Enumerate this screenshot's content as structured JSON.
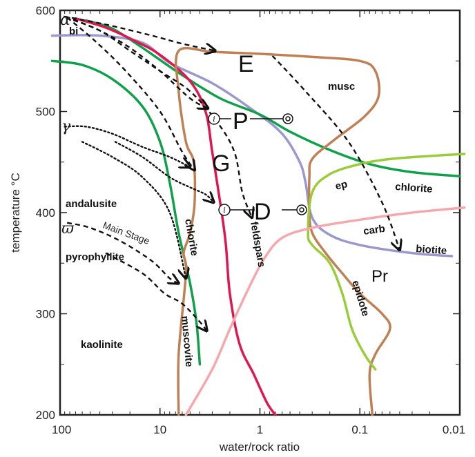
{
  "chart_data": {
    "type": "line",
    "x_scale": "log",
    "x_reversed": true,
    "xlim": [
      100,
      0.01
    ],
    "ylim": [
      200,
      600
    ],
    "xlabel": "water/rock ratio",
    "ylabel": "temperature °C",
    "x_ticks": [
      {
        "value": 100,
        "label": "100"
      },
      {
        "value": 10,
        "label": "10"
      },
      {
        "value": 1,
        "label": "1"
      },
      {
        "value": 0.1,
        "label": "0.1"
      },
      {
        "value": 0.01,
        "label": "0.01"
      }
    ],
    "y_ticks": [
      {
        "value": 200,
        "label": "200"
      },
      {
        "value": 300,
        "label": "300"
      },
      {
        "value": 400,
        "label": "400"
      },
      {
        "value": 500,
        "label": "500"
      },
      {
        "value": 600,
        "label": "600"
      }
    ],
    "series": [
      {
        "key": "biotite",
        "color": "#9a98cc",
        "points": [
          [
            120,
            575
          ],
          [
            40,
            575
          ],
          [
            15,
            568
          ],
          [
            8,
            548
          ],
          [
            3,
            528
          ],
          [
            1.2,
            502
          ],
          [
            0.6,
            478
          ],
          [
            0.4,
            450
          ],
          [
            0.35,
            430
          ],
          [
            0.3,
            395
          ],
          [
            0.2,
            378
          ],
          [
            0.1,
            368
          ],
          [
            0.03,
            360
          ],
          [
            0.012,
            357
          ]
        ]
      },
      {
        "key": "chlorite-high",
        "color": "#10a04c",
        "points": [
          [
            55,
            590
          ],
          [
            30,
            582
          ],
          [
            15,
            563
          ],
          [
            6,
            536
          ],
          [
            2.5,
            513
          ],
          [
            1,
            497
          ],
          [
            0.5,
            480
          ],
          [
            0.2,
            462
          ],
          [
            0.08,
            448
          ],
          [
            0.03,
            440
          ],
          [
            0.01,
            436
          ]
        ]
      },
      {
        "key": "chlorite-low",
        "color": "#10a04c",
        "points": [
          [
            120,
            550
          ],
          [
            60,
            546
          ],
          [
            30,
            532
          ],
          [
            15,
            505
          ],
          [
            10,
            470
          ],
          [
            8,
            430
          ],
          [
            6.5,
            380
          ],
          [
            5,
            330
          ],
          [
            4.3,
            290
          ],
          [
            4,
            250
          ]
        ]
      },
      {
        "key": "feldspars",
        "color": "#e01650",
        "points": [
          [
            70,
            592
          ],
          [
            35,
            583
          ],
          [
            18,
            570
          ],
          [
            10,
            556
          ],
          [
            5,
            530
          ],
          [
            3.5,
            500
          ],
          [
            3,
            460
          ],
          [
            2.5,
            410
          ],
          [
            2.2,
            370
          ],
          [
            2,
            320
          ],
          [
            1.6,
            270
          ],
          [
            1.15,
            240
          ],
          [
            0.85,
            212
          ],
          [
            0.7,
            200
          ]
        ]
      },
      {
        "key": "muscovite",
        "color": "#c08055",
        "points": [
          [
            6.5,
            200
          ],
          [
            6.5,
            260
          ],
          [
            5.5,
            340
          ],
          [
            5.8,
            360
          ],
          [
            5,
            380
          ],
          [
            4.5,
            410
          ],
          [
            4.6,
            450
          ],
          [
            5.5,
            470
          ],
          [
            6.5,
            520
          ],
          [
            6.5,
            560
          ],
          [
            3,
            559
          ],
          [
            1,
            557
          ],
          [
            0.3,
            554
          ],
          [
            0.1,
            550
          ],
          [
            0.07,
            540
          ],
          [
            0.065,
            515
          ],
          [
            0.09,
            495
          ],
          [
            0.18,
            472
          ],
          [
            0.3,
            453
          ],
          [
            0.32,
            435
          ],
          [
            0.32,
            400
          ],
          [
            0.3,
            380
          ],
          [
            0.22,
            360
          ],
          [
            0.15,
            340
          ],
          [
            0.1,
            320
          ],
          [
            0.06,
            300
          ],
          [
            0.05,
            285
          ],
          [
            0.07,
            260
          ],
          [
            0.08,
            240
          ],
          [
            0.075,
            200
          ]
        ]
      },
      {
        "key": "epidote",
        "color": "#9acb3a",
        "points": [
          [
            0.07,
            245
          ],
          [
            0.09,
            260
          ],
          [
            0.12,
            285
          ],
          [
            0.15,
            320
          ],
          [
            0.2,
            350
          ],
          [
            0.3,
            368
          ],
          [
            0.33,
            380
          ],
          [
            0.3,
            420
          ],
          [
            0.2,
            438
          ],
          [
            0.1,
            448
          ],
          [
            0.05,
            453
          ],
          [
            0.02,
            456
          ],
          [
            0.009,
            458
          ]
        ]
      },
      {
        "key": "carbonate",
        "color": "#f4a8ad",
        "points": [
          [
            5.5,
            200
          ],
          [
            3,
            245
          ],
          [
            2,
            285
          ],
          [
            1.3,
            325
          ],
          [
            0.9,
            355
          ],
          [
            0.6,
            375
          ],
          [
            0.3,
            385
          ],
          [
            0.1,
            393
          ],
          [
            0.03,
            400
          ],
          [
            0.009,
            405
          ]
        ]
      }
    ],
    "paths": [
      {
        "style": "dashed",
        "points": [
          [
            92,
            594
          ],
          [
            35,
            586
          ],
          [
            12,
            575
          ],
          [
            6,
            567
          ],
          [
            2.8,
            560
          ]
        ]
      },
      {
        "style": "dashed",
        "points": [
          [
            0.75,
            555
          ],
          [
            0.35,
            520
          ],
          [
            0.13,
            470
          ],
          [
            0.06,
            410
          ],
          [
            0.04,
            363
          ]
        ]
      },
      {
        "style": "dashed",
        "points": [
          [
            88,
            594
          ],
          [
            40,
            580
          ],
          [
            20,
            563
          ],
          [
            10,
            540
          ],
          [
            5,
            513
          ],
          [
            3.3,
            503
          ]
        ]
      },
      {
        "style": "dashed",
        "points": [
          [
            85,
            593
          ],
          [
            45,
            570
          ],
          [
            22,
            540
          ],
          [
            10,
            500
          ],
          [
            6,
            460
          ],
          [
            4.5,
            442
          ]
        ]
      },
      {
        "style": "dashed",
        "points": [
          [
            88,
            593
          ],
          [
            40,
            580
          ],
          [
            20,
            560
          ],
          [
            10,
            540
          ],
          [
            5,
            520
          ],
          [
            2.7,
            490
          ],
          [
            1.8,
            460
          ],
          [
            1.5,
            420
          ],
          [
            1.2,
            395
          ]
        ]
      },
      {
        "style": "dotted",
        "points": [
          [
            90,
            485
          ],
          [
            55,
            485
          ],
          [
            30,
            478
          ],
          [
            15,
            465
          ],
          [
            8,
            455
          ],
          [
            5,
            445
          ]
        ]
      },
      {
        "style": "dotted",
        "points": [
          [
            60,
            470
          ],
          [
            30,
            455
          ],
          [
            15,
            435
          ],
          [
            8,
            400
          ],
          [
            5.5,
            335
          ]
        ]
      },
      {
        "style": "dotted",
        "points": [
          [
            28,
            470
          ],
          [
            15,
            455
          ],
          [
            8,
            435
          ],
          [
            5,
            425
          ],
          [
            3.5,
            418
          ],
          [
            2.9,
            410
          ]
        ]
      },
      {
        "style": "dashed",
        "points": [
          [
            85,
            390
          ],
          [
            50,
            385
          ],
          [
            25,
            372
          ],
          [
            12,
            352
          ],
          [
            8,
            335
          ],
          [
            6.5,
            330
          ]
        ]
      },
      {
        "style": "dashed",
        "points": [
          [
            35,
            360
          ],
          [
            15,
            340
          ],
          [
            9,
            320
          ],
          [
            6,
            310
          ],
          [
            4,
            292
          ],
          [
            3.4,
            283
          ]
        ]
      }
    ],
    "labels": {
      "bi": "bi",
      "musc": "musc",
      "chlorite_right": "chlorite",
      "ep": "ep",
      "carb": "carb",
      "biotite": "biotite",
      "andalusite": "andalusite",
      "pyrophyllite": "pyrophyllite",
      "kaolinite": "kaolinite",
      "chlorite_vertical": "chlorite",
      "muscovite": "muscovite",
      "feldspars": "feldspars",
      "epidote": "epidote",
      "main_stage": "Main Stage",
      "E": "E",
      "P": "P",
      "G": "G",
      "D": "D",
      "Pr": "Pr",
      "alpha": "α",
      "gamma": "γ",
      "varpi": "ϖ",
      "i_symbol": "i",
      "o_symbol": "o"
    }
  }
}
